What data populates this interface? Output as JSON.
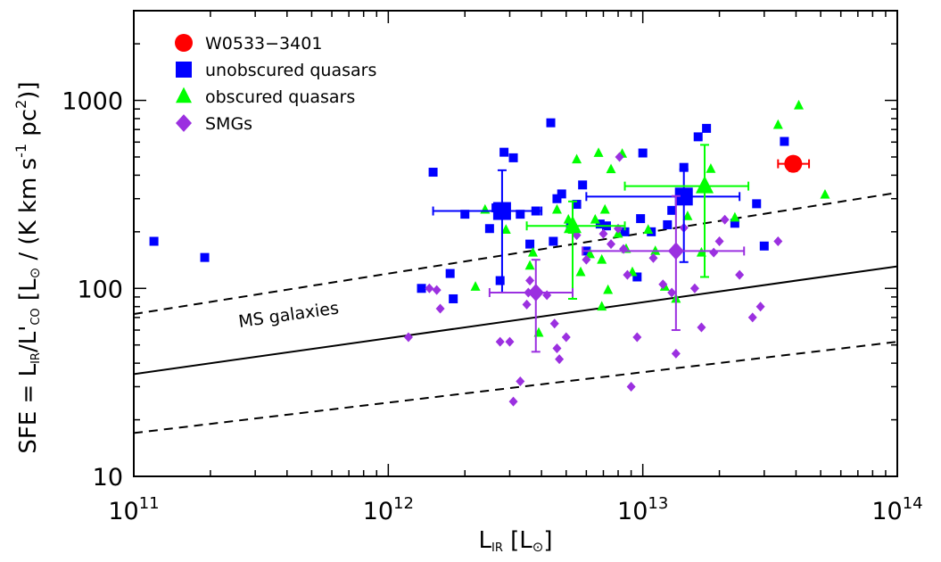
{
  "chart_data": {
    "type": "scatter",
    "xscale": "log",
    "yscale": "log",
    "xlim": [
      100000000000.0,
      100000000000000.0
    ],
    "ylim": [
      10,
      3000
    ],
    "xlabel": "L_IR [L_⊙]",
    "ylabel": "SFE = L_IR/L'_CO [L_⊙ / (K km s^-1 pc^2)]",
    "x_ticks": [
      100000000000.0,
      1000000000000.0,
      10000000000000.0,
      100000000000000.0
    ],
    "x_tick_labels": [
      {
        "base": "10",
        "exp": "11"
      },
      {
        "base": "10",
        "exp": "12"
      },
      {
        "base": "10",
        "exp": "13"
      },
      {
        "base": "10",
        "exp": "14"
      }
    ],
    "y_ticks": [
      10,
      100,
      1000
    ],
    "y_tick_labels": [
      "10",
      "100",
      "1000"
    ],
    "grid": false,
    "legend_position": "top-left",
    "series": [
      {
        "name": "W0533−3401",
        "marker": "circle",
        "color": "#ff0000",
        "points": [
          [
            39000000000000.0,
            460
          ]
        ],
        "error_points": [
          {
            "x": 39000000000000.0,
            "y": 460,
            "xerr": [
              34000000000000.0,
              45000000000000.0
            ],
            "yerr": [
              420,
              500
            ],
            "big": true
          }
        ]
      },
      {
        "name": "unobscured quasars",
        "marker": "square",
        "color": "#0000ff",
        "points": [
          [
            120000000000.0,
            178
          ],
          [
            190000000000.0,
            146
          ],
          [
            1350000000000.0,
            100
          ],
          [
            1500000000000.0,
            415
          ],
          [
            1750000000000.0,
            120
          ],
          [
            1800000000000.0,
            88
          ],
          [
            2000000000000.0,
            248
          ],
          [
            2500000000000.0,
            208
          ],
          [
            2650000000000.0,
            268
          ],
          [
            2750000000000.0,
            110
          ],
          [
            2850000000000.0,
            530
          ],
          [
            3100000000000.0,
            495
          ],
          [
            3300000000000.0,
            248
          ],
          [
            3600000000000.0,
            172
          ],
          [
            3800000000000.0,
            258
          ],
          [
            4350000000000.0,
            760
          ],
          [
            4450000000000.0,
            178
          ],
          [
            4600000000000.0,
            300
          ],
          [
            4800000000000.0,
            318
          ],
          [
            5200000000000.0,
            215
          ],
          [
            5500000000000.0,
            280
          ],
          [
            5800000000000.0,
            355
          ],
          [
            6000000000000.0,
            158
          ],
          [
            6800000000000.0,
            220
          ],
          [
            7200000000000.0,
            215
          ],
          [
            8500000000000.0,
            200
          ],
          [
            9500000000000.0,
            115
          ],
          [
            9800000000000.0,
            235
          ],
          [
            10000000000000.0,
            525
          ],
          [
            10800000000000.0,
            200
          ],
          [
            12500000000000.0,
            218
          ],
          [
            13000000000000.0,
            260
          ],
          [
            14500000000000.0,
            440
          ],
          [
            16500000000000.0,
            640
          ],
          [
            17800000000000.0,
            710
          ],
          [
            23000000000000.0,
            222
          ],
          [
            28000000000000.0,
            282
          ],
          [
            30000000000000.0,
            168
          ],
          [
            36000000000000.0,
            605
          ]
        ],
        "error_points": [
          {
            "x": 2800000000000.0,
            "y": 258,
            "xerr": [
              1500000000000.0,
              4000000000000.0
            ],
            "yerr": [
              95,
              425
            ],
            "big": true
          },
          {
            "x": 14500000000000.0,
            "y": 308,
            "xerr": [
              6000000000000.0,
              24000000000000.0
            ],
            "yerr": [
              138,
              430
            ],
            "big": true
          }
        ]
      },
      {
        "name": "obscured quasars",
        "marker": "triangle",
        "color": "#00ff00",
        "points": [
          [
            2200000000000.0,
            102
          ],
          [
            2400000000000.0,
            262
          ],
          [
            2900000000000.0,
            205
          ],
          [
            3600000000000.0,
            132
          ],
          [
            3700000000000.0,
            155
          ],
          [
            3900000000000.0,
            58
          ],
          [
            4600000000000.0,
            262
          ],
          [
            5100000000000.0,
            232
          ],
          [
            5300000000000.0,
            205
          ],
          [
            5500000000000.0,
            485
          ],
          [
            5700000000000.0,
            122
          ],
          [
            6200000000000.0,
            152
          ],
          [
            6500000000000.0,
            232
          ],
          [
            6700000000000.0,
            525
          ],
          [
            6900000000000.0,
            142
          ],
          [
            7100000000000.0,
            262
          ],
          [
            7300000000000.0,
            98
          ],
          [
            7500000000000.0,
            430
          ],
          [
            8000000000000.0,
            195
          ],
          [
            8300000000000.0,
            520
          ],
          [
            8600000000000.0,
            162
          ],
          [
            9100000000000.0,
            122
          ],
          [
            10500000000000.0,
            205
          ],
          [
            11200000000000.0,
            158
          ],
          [
            12200000000000.0,
            102
          ],
          [
            13500000000000.0,
            88
          ],
          [
            15000000000000.0,
            242
          ],
          [
            17000000000000.0,
            155
          ],
          [
            18500000000000.0,
            432
          ],
          [
            23000000000000.0,
            238
          ],
          [
            34000000000000.0,
            740
          ],
          [
            41000000000000.0,
            940
          ],
          [
            52000000000000.0,
            315
          ],
          [
            6900000000000.0,
            80
          ]
        ],
        "error_points": [
          {
            "x": 5300000000000.0,
            "y": 215,
            "xerr": [
              3500000000000.0,
              8500000000000.0
            ],
            "yerr": [
              88,
              290
            ],
            "big": true
          },
          {
            "x": 17500000000000.0,
            "y": 350,
            "xerr": [
              8500000000000.0,
              26000000000000.0
            ],
            "yerr": [
              115,
              580
            ],
            "big": true
          }
        ]
      },
      {
        "name": "SMGs",
        "marker": "diamond",
        "color": "#9b30e0",
        "points": [
          [
            1200000000000.0,
            55
          ],
          [
            1450000000000.0,
            100
          ],
          [
            1550000000000.0,
            98
          ],
          [
            1600000000000.0,
            78
          ],
          [
            2750000000000.0,
            52
          ],
          [
            3000000000000.0,
            52
          ],
          [
            3300000000000.0,
            32
          ],
          [
            3500000000000.0,
            82
          ],
          [
            3550000000000.0,
            95
          ],
          [
            3600000000000.0,
            110
          ],
          [
            4200000000000.0,
            92
          ],
          [
            4500000000000.0,
            65
          ],
          [
            4600000000000.0,
            48
          ],
          [
            4700000000000.0,
            42
          ],
          [
            5000000000000.0,
            55
          ],
          [
            5500000000000.0,
            192
          ],
          [
            6000000000000.0,
            142
          ],
          [
            7000000000000.0,
            195
          ],
          [
            7500000000000.0,
            172
          ],
          [
            8000000000000.0,
            208
          ],
          [
            8400000000000.0,
            162
          ],
          [
            8700000000000.0,
            118
          ],
          [
            9000000000000.0,
            30
          ],
          [
            9500000000000.0,
            55
          ],
          [
            11000000000000.0,
            145
          ],
          [
            12000000000000.0,
            105
          ],
          [
            13000000000000.0,
            95
          ],
          [
            13500000000000.0,
            45
          ],
          [
            14500000000000.0,
            210
          ],
          [
            16000000000000.0,
            100
          ],
          [
            17000000000000.0,
            62
          ],
          [
            19000000000000.0,
            155
          ],
          [
            20000000000000.0,
            178
          ],
          [
            21000000000000.0,
            232
          ],
          [
            24000000000000.0,
            118
          ],
          [
            27000000000000.0,
            70
          ],
          [
            29000000000000.0,
            80
          ],
          [
            34000000000000.0,
            178
          ],
          [
            3100000000000.0,
            25
          ],
          [
            8100000000000.0,
            500
          ]
        ],
        "error_points": [
          {
            "x": 3800000000000.0,
            "y": 95,
            "xerr": [
              2500000000000.0,
              5300000000000.0
            ],
            "yerr": [
              46,
              142
            ],
            "big": true
          },
          {
            "x": 13500000000000.0,
            "y": 158,
            "xerr": [
              5800000000000.0,
              25000000000000.0
            ],
            "yerr": [
              60,
              310
            ],
            "big": true
          }
        ]
      }
    ],
    "lines": [
      {
        "name": "MS galaxies",
        "style": "solid",
        "points": [
          [
            100000000000.0,
            35
          ],
          [
            100000000000000.0,
            131
          ]
        ]
      },
      {
        "name": "",
        "style": "dashed",
        "points": [
          [
            100000000000.0,
            73
          ],
          [
            100000000000000.0,
            323
          ]
        ]
      },
      {
        "name": "",
        "style": "dashed",
        "points": [
          [
            100000000000.0,
            17
          ],
          [
            100000000000000.0,
            52
          ]
        ]
      }
    ],
    "annotations": [
      {
        "text": "MS galaxies",
        "x": 260000000000.0,
        "y": 62
      }
    ]
  }
}
